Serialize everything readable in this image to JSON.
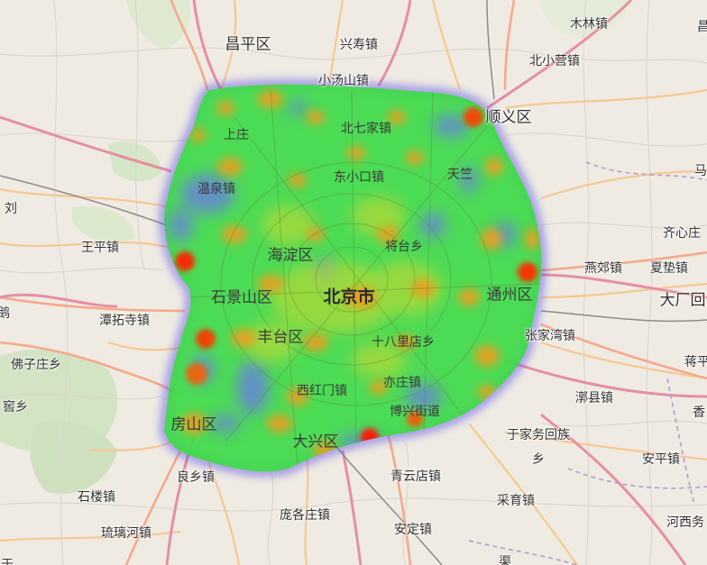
{
  "map": {
    "colors": {
      "land": "#efebe3",
      "green_area": "#cfe3c0",
      "motorway": "#e892a2",
      "trunk": "#f9b29c",
      "primary": "#fcd6a4",
      "minor": "#ffffff",
      "rail": "#8a8a8a",
      "boundary": "#b79bc9",
      "heat_low": "#3a6cf0",
      "heat_mid": "#33dd44",
      "heat_high": "#ff7f00",
      "heat_peak": "#ff1c00"
    },
    "labels": [
      {
        "id": "changping",
        "text": "昌平区",
        "kind": "district"
      },
      {
        "id": "xingshou",
        "text": "兴寿镇",
        "kind": "town"
      },
      {
        "id": "mulin",
        "text": "木林镇",
        "kind": "town"
      },
      {
        "id": "beixiaoying",
        "text": "北小营镇",
        "kind": "town"
      },
      {
        "id": "xiaotangshan",
        "text": "小汤山镇",
        "kind": "town"
      },
      {
        "id": "shunyi",
        "text": "顺义区",
        "kind": "district"
      },
      {
        "id": "beiqijia",
        "text": "北七家镇",
        "kind": "town"
      },
      {
        "id": "shangzhuang",
        "text": "上庄",
        "kind": "town"
      },
      {
        "id": "dongxiaokou",
        "text": "东小口镇",
        "kind": "town"
      },
      {
        "id": "tianzhu",
        "text": "天竺",
        "kind": "town"
      },
      {
        "id": "wenquan",
        "text": "温泉镇",
        "kind": "town"
      },
      {
        "id": "jiangtai",
        "text": "将台乡",
        "kind": "town"
      },
      {
        "id": "haidian",
        "text": "海淀区",
        "kind": "district"
      },
      {
        "id": "wangping",
        "text": "王平镇",
        "kind": "town"
      },
      {
        "id": "qixinzhuang",
        "text": "齐心庄",
        "kind": "town"
      },
      {
        "id": "yanjiao",
        "text": "燕郊镇",
        "kind": "town"
      },
      {
        "id": "xiadian",
        "text": "夏垫镇",
        "kind": "town"
      },
      {
        "id": "dachang",
        "text": "大厂回",
        "kind": "district"
      },
      {
        "id": "shijingshan",
        "text": "石景山区",
        "kind": "district"
      },
      {
        "id": "beijing",
        "text": "北京市",
        "kind": "city"
      },
      {
        "id": "tongzhou",
        "text": "通州区",
        "kind": "district"
      },
      {
        "id": "tanzhesi",
        "text": "潭拓寺镇",
        "kind": "town"
      },
      {
        "id": "fengtai",
        "text": "丰台区",
        "kind": "district"
      },
      {
        "id": "shibalidian",
        "text": "十八里店乡",
        "kind": "town"
      },
      {
        "id": "zhangjiawan",
        "text": "张家湾镇",
        "kind": "town"
      },
      {
        "id": "fozizhuang",
        "text": "佛子庄乡",
        "kind": "town"
      },
      {
        "id": "jianping_frag",
        "text": "蒋平",
        "kind": "town"
      },
      {
        "id": "xihongmen",
        "text": "西红门镇",
        "kind": "town"
      },
      {
        "id": "yizhuang",
        "text": "亦庄镇",
        "kind": "town"
      },
      {
        "id": "ku_frag",
        "text": "窖乡",
        "kind": "town"
      },
      {
        "id": "liqiao",
        "text": "漷县镇",
        "kind": "town"
      },
      {
        "id": "bohong",
        "text": "博兴街道",
        "kind": "town"
      },
      {
        "id": "xiang_frag",
        "text": "香",
        "kind": "town"
      },
      {
        "id": "fangshan",
        "text": "房山区",
        "kind": "district"
      },
      {
        "id": "yujiawu",
        "text": "于家务回族",
        "kind": "town"
      },
      {
        "id": "xiang2",
        "text": "乡",
        "kind": "town"
      },
      {
        "id": "daxing",
        "text": "大兴区",
        "kind": "district"
      },
      {
        "id": "anping",
        "text": "安平镇",
        "kind": "town"
      },
      {
        "id": "liangxiang",
        "text": "良乡镇",
        "kind": "town"
      },
      {
        "id": "qingyundian",
        "text": "青云店镇",
        "kind": "town"
      },
      {
        "id": "shilou",
        "text": "石楼镇",
        "kind": "town"
      },
      {
        "id": "caiyu",
        "text": "采育镇",
        "kind": "town"
      },
      {
        "id": "panggezhuang",
        "text": "庞各庄镇",
        "kind": "town"
      },
      {
        "id": "hexiwu",
        "text": "河西务",
        "kind": "town"
      },
      {
        "id": "liulihe",
        "text": "琉璃河镇",
        "kind": "town"
      },
      {
        "id": "anding",
        "text": "安定镇",
        "kind": "town"
      },
      {
        "id": "chang_frag",
        "text": "昌",
        "kind": "town"
      },
      {
        "id": "ma_frag",
        "text": "马",
        "kind": "town"
      },
      {
        "id": "dui_frag",
        "text": "刘",
        "kind": "town"
      },
      {
        "id": "gou_frag",
        "text": "鹅",
        "kind": "town"
      },
      {
        "id": "yu_frag",
        "text": "于",
        "kind": "town"
      },
      {
        "id": "lu_frag",
        "text": "渠",
        "kind": "town"
      }
    ],
    "heat_peaks": [
      {
        "id": "peak-west",
        "level": "peak"
      },
      {
        "id": "peak-fangshan",
        "level": "peak"
      },
      {
        "id": "peak-southwest",
        "level": "high"
      },
      {
        "id": "peak-shunyi",
        "level": "peak"
      },
      {
        "id": "peak-tongzhou",
        "level": "peak"
      },
      {
        "id": "peak-daxing",
        "level": "peak"
      },
      {
        "id": "peak-yizhuang",
        "level": "high"
      }
    ]
  }
}
